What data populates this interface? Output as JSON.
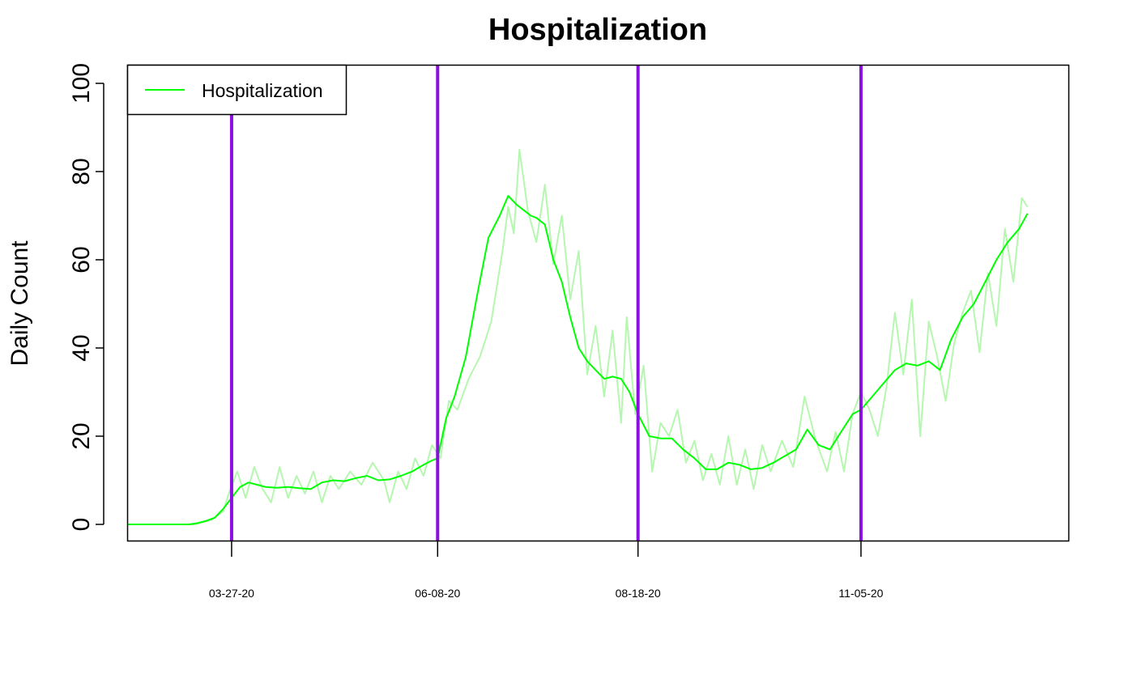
{
  "chart_data": {
    "type": "line",
    "title": "Hospitalization",
    "xlabel": "",
    "ylabel": "Daily Count",
    "ylim": [
      0,
      100
    ],
    "yticks": [
      0,
      20,
      40,
      60,
      80,
      100
    ],
    "x_start": "2020-02-19",
    "x_end": "2021-01-04",
    "xtick_dates": [
      "2020-03-27",
      "2020-06-08",
      "2020-08-18",
      "2020-11-05"
    ],
    "xtick_labels": [
      "03-27-20",
      "06-08-20",
      "08-18-20",
      "11-05-20"
    ],
    "vertical_lines": {
      "color": "#8B10E0",
      "dates": [
        "2020-03-27",
        "2020-06-08",
        "2020-08-18",
        "2020-11-05"
      ]
    },
    "grid": false,
    "legend": {
      "position": "top-left",
      "entries": [
        "Hospitalization"
      ]
    },
    "series": [
      {
        "name": "Hospitalization",
        "color": "#00FF00",
        "raw_color": "#B6F7B0",
        "smoothed_dates": [
          "2020-02-19",
          "2020-03-12",
          "2020-03-15",
          "2020-03-18",
          "2020-03-21",
          "2020-03-24",
          "2020-03-27",
          "2020-03-30",
          "2020-04-02",
          "2020-04-05",
          "2020-04-08",
          "2020-04-12",
          "2020-04-16",
          "2020-04-20",
          "2020-04-24",
          "2020-04-28",
          "2020-05-02",
          "2020-05-06",
          "2020-05-10",
          "2020-05-14",
          "2020-05-18",
          "2020-05-22",
          "2020-05-26",
          "2020-05-30",
          "2020-06-03",
          "2020-06-06",
          "2020-06-08",
          "2020-06-11",
          "2020-06-14",
          "2020-06-18",
          "2020-06-22",
          "2020-06-26",
          "2020-06-30",
          "2020-07-03",
          "2020-07-06",
          "2020-07-09",
          "2020-07-11",
          "2020-07-13",
          "2020-07-16",
          "2020-07-19",
          "2020-07-22",
          "2020-07-25",
          "2020-07-28",
          "2020-07-31",
          "2020-08-03",
          "2020-08-06",
          "2020-08-09",
          "2020-08-12",
          "2020-08-15",
          "2020-08-18",
          "2020-08-22",
          "2020-08-26",
          "2020-08-30",
          "2020-09-03",
          "2020-09-07",
          "2020-09-11",
          "2020-09-15",
          "2020-09-19",
          "2020-09-23",
          "2020-09-27",
          "2020-10-01",
          "2020-10-05",
          "2020-10-09",
          "2020-10-13",
          "2020-10-17",
          "2020-10-21",
          "2020-10-25",
          "2020-10-29",
          "2020-11-02",
          "2020-11-05",
          "2020-11-09",
          "2020-11-13",
          "2020-11-17",
          "2020-11-21",
          "2020-11-25",
          "2020-11-29",
          "2020-12-03",
          "2020-12-07",
          "2020-12-11",
          "2020-12-15",
          "2020-12-19",
          "2020-12-23",
          "2020-12-27",
          "2020-12-31",
          "2021-01-03"
        ],
        "smoothed_values": [
          0,
          0,
          0.3,
          0.8,
          1.5,
          3.5,
          6,
          8.5,
          9.5,
          9,
          8.5,
          8.3,
          8.5,
          8.2,
          8,
          9.5,
          10,
          9.8,
          10.5,
          11,
          10,
          10.2,
          11,
          12,
          13.5,
          14.5,
          15,
          24,
          29,
          38,
          52,
          65,
          70,
          74.5,
          72.5,
          71,
          70,
          69.5,
          68,
          60,
          55,
          47,
          40,
          37,
          35,
          33,
          33.5,
          33,
          30,
          25,
          20,
          19.5,
          19.5,
          17,
          15,
          12.5,
          12.5,
          14,
          13.5,
          12.5,
          12.8,
          14,
          15.5,
          17,
          21.5,
          18,
          17,
          21,
          25,
          26,
          29,
          32,
          35,
          36.5,
          36,
          37,
          35,
          42,
          47,
          50,
          55,
          60,
          64,
          67,
          70.5
        ],
        "raw_dates": [
          "2020-02-19",
          "2020-03-14",
          "2020-03-20",
          "2020-03-24",
          "2020-03-26",
          "2020-03-29",
          "2020-04-01",
          "2020-04-04",
          "2020-04-07",
          "2020-04-10",
          "2020-04-13",
          "2020-04-16",
          "2020-04-19",
          "2020-04-22",
          "2020-04-25",
          "2020-04-28",
          "2020-05-01",
          "2020-05-04",
          "2020-05-08",
          "2020-05-12",
          "2020-05-16",
          "2020-05-20",
          "2020-05-22",
          "2020-05-25",
          "2020-05-28",
          "2020-05-31",
          "2020-06-03",
          "2020-06-06",
          "2020-06-09",
          "2020-06-12",
          "2020-06-15",
          "2020-06-19",
          "2020-06-23",
          "2020-06-27",
          "2020-07-01",
          "2020-07-03",
          "2020-07-05",
          "2020-07-07",
          "2020-07-10",
          "2020-07-13",
          "2020-07-16",
          "2020-07-19",
          "2020-07-22",
          "2020-07-25",
          "2020-07-28",
          "2020-07-31",
          "2020-08-03",
          "2020-08-06",
          "2020-08-09",
          "2020-08-12",
          "2020-08-14",
          "2020-08-17",
          "2020-08-20",
          "2020-08-23",
          "2020-08-26",
          "2020-08-29",
          "2020-09-01",
          "2020-09-04",
          "2020-09-07",
          "2020-09-10",
          "2020-09-13",
          "2020-09-16",
          "2020-09-19",
          "2020-09-22",
          "2020-09-25",
          "2020-09-28",
          "2020-10-01",
          "2020-10-04",
          "2020-10-08",
          "2020-10-12",
          "2020-10-16",
          "2020-10-20",
          "2020-10-24",
          "2020-10-27",
          "2020-10-30",
          "2020-11-02",
          "2020-11-05",
          "2020-11-08",
          "2020-11-11",
          "2020-11-14",
          "2020-11-17",
          "2020-11-20",
          "2020-11-23",
          "2020-11-26",
          "2020-11-29",
          "2020-12-02",
          "2020-12-05",
          "2020-12-08",
          "2020-12-11",
          "2020-12-14",
          "2020-12-17",
          "2020-12-20",
          "2020-12-23",
          "2020-12-26",
          "2020-12-29",
          "2021-01-01",
          "2021-01-03"
        ],
        "raw_values": [
          0,
          0,
          1,
          3,
          7,
          12,
          6,
          13,
          8,
          5,
          13,
          6,
          11,
          7,
          12,
          5,
          11,
          8,
          12,
          9,
          14,
          10,
          5,
          12,
          8,
          15,
          11,
          18,
          15,
          28,
          26,
          33,
          38,
          46,
          62,
          72,
          66,
          85,
          71,
          64,
          77,
          59,
          70,
          51,
          62,
          34,
          45,
          29,
          44,
          23,
          47,
          25,
          36,
          12,
          23,
          20,
          26,
          14,
          19,
          10,
          16,
          9,
          20,
          9,
          17,
          8,
          18,
          12,
          19,
          13,
          29,
          19,
          12,
          21,
          12,
          25,
          30,
          26,
          20,
          31,
          48,
          34,
          51,
          20,
          46,
          38,
          28,
          41,
          48,
          53,
          39,
          57,
          45,
          67,
          55,
          74,
          72
        ]
      }
    ]
  }
}
